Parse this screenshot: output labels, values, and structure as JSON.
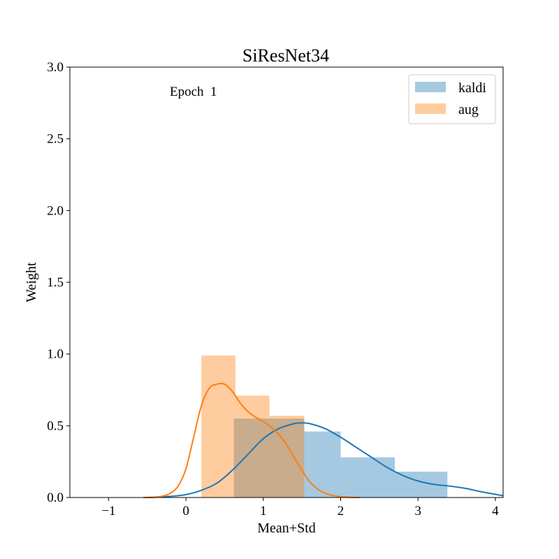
{
  "chart_data": {
    "type": "histogram+kde",
    "title": "SiResNet34",
    "xlabel": "Mean+Std",
    "ylabel": "Weight",
    "xlim": [
      -1.5,
      4.1
    ],
    "ylim": [
      0,
      3.0
    ],
    "xticks": [
      -1,
      0,
      1,
      2,
      3,
      4
    ],
    "xtick_labels": [
      "−1",
      "0",
      "1",
      "2",
      "3",
      "4"
    ],
    "yticks": [
      0,
      0.5,
      1.0,
      1.5,
      2.0,
      2.5,
      3.0
    ],
    "ytick_labels": [
      "0.0",
      "0.5",
      "1.0",
      "1.5",
      "2.0",
      "2.5",
      "3.0"
    ],
    "annotation": "Epoch  1",
    "grid": false,
    "legend_position": "upper-right",
    "series": [
      {
        "name": "kaldi",
        "hist_color": "#a6c8e0",
        "line_color": "#1f77b4",
        "bins": [
          {
            "x0": 0.62,
            "x1": 1.53,
            "height": 0.55
          },
          {
            "x0": 1.53,
            "x1": 2.0,
            "height": 0.46
          },
          {
            "x0": 2.0,
            "x1": 2.7,
            "height": 0.28
          },
          {
            "x0": 2.7,
            "x1": 3.38,
            "height": 0.18
          }
        ],
        "kde": {
          "x": [
            -0.55,
            -0.4,
            -0.2,
            0,
            0.2,
            0.4,
            0.6,
            0.8,
            1.0,
            1.2,
            1.4,
            1.5,
            1.6,
            1.8,
            2.0,
            2.2,
            2.4,
            2.6,
            2.8,
            3.0,
            3.2,
            3.4,
            3.6,
            3.8,
            4.0,
            4.1
          ],
          "y": [
            0.0,
            0.002,
            0.008,
            0.02,
            0.05,
            0.1,
            0.19,
            0.3,
            0.41,
            0.48,
            0.515,
            0.52,
            0.515,
            0.48,
            0.42,
            0.35,
            0.28,
            0.21,
            0.155,
            0.115,
            0.092,
            0.08,
            0.065,
            0.042,
            0.022,
            0.012
          ]
        }
      },
      {
        "name": "aug",
        "hist_color": "#ffc79c",
        "line_color": "#ff7f0e",
        "bins": [
          {
            "x0": 0.2,
            "x1": 0.64,
            "height": 0.99
          },
          {
            "x0": 0.64,
            "x1": 1.08,
            "height": 0.71
          },
          {
            "x0": 1.08,
            "x1": 1.53,
            "height": 0.57
          }
        ],
        "kde": {
          "x": [
            -0.55,
            -0.4,
            -0.3,
            -0.2,
            -0.1,
            0,
            0.1,
            0.2,
            0.3,
            0.4,
            0.5,
            0.6,
            0.7,
            0.8,
            0.9,
            1.0,
            1.1,
            1.2,
            1.3,
            1.4,
            1.5,
            1.6,
            1.7,
            1.8,
            1.9,
            2.0,
            2.1,
            2.25
          ],
          "y": [
            0.0,
            0.003,
            0.01,
            0.03,
            0.08,
            0.2,
            0.42,
            0.64,
            0.76,
            0.79,
            0.79,
            0.74,
            0.66,
            0.6,
            0.56,
            0.53,
            0.49,
            0.44,
            0.37,
            0.28,
            0.19,
            0.11,
            0.06,
            0.03,
            0.014,
            0.006,
            0.002,
            0.0
          ]
        }
      }
    ]
  }
}
